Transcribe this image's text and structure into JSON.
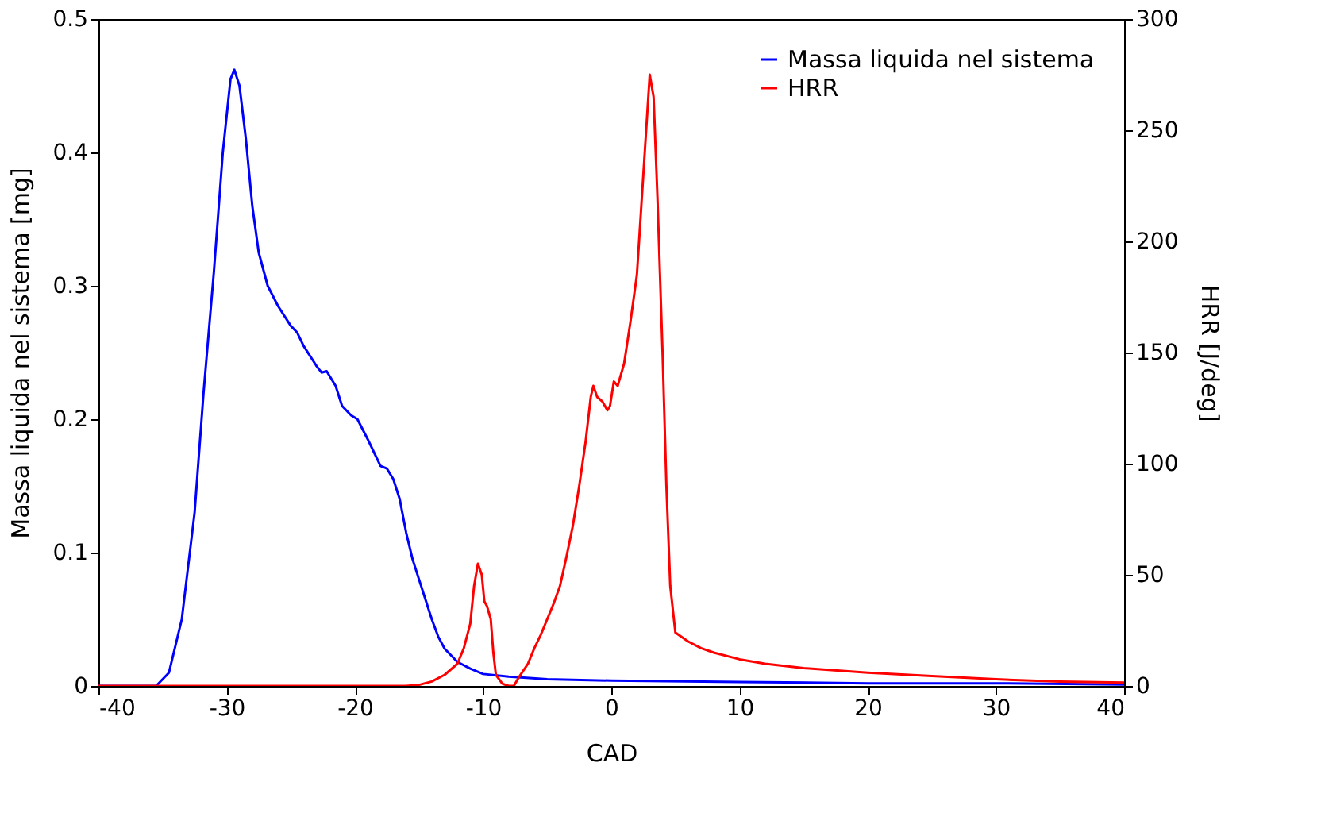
{
  "chart_data": {
    "type": "line",
    "xlabel": "CAD",
    "ylabel": "Massa liquida nel sistema [mg]",
    "y2label": "HRR [J/deg]",
    "xlim": [
      -40,
      40
    ],
    "xticks": [
      -40,
      -30,
      -20,
      -10,
      0,
      10,
      20,
      30,
      40
    ],
    "ylim": [
      0,
      0.5
    ],
    "yticks": [
      0,
      0.1,
      0.2,
      0.3,
      0.4,
      0.5
    ],
    "y2lim": [
      0,
      300
    ],
    "y2ticks": [
      0,
      50,
      100,
      150,
      200,
      250,
      300
    ],
    "grid": false,
    "legend": "top right",
    "line_style": "solid",
    "marker": "none",
    "series": [
      {
        "name": "Massa liquida nel sistema",
        "color": "#0000ff",
        "x": [
          -40,
          -35.5,
          -34.5,
          -33.5,
          -32.5,
          -31.8,
          -31,
          -30.3,
          -29.7,
          -29.4,
          -29,
          -28.5,
          -28,
          -27.5,
          -26.8,
          -26,
          -25,
          -24.5,
          -24,
          -23,
          -22.6,
          -22.2,
          -21.5,
          -21,
          -20.3,
          -19.8,
          -19,
          -18.5,
          -18,
          -17.5,
          -17,
          -16.5,
          -16,
          -15.5,
          -15,
          -14.5,
          -14,
          -13.5,
          -13,
          -12,
          -11,
          -10,
          -8,
          -5,
          0,
          10,
          20,
          30,
          40
        ],
        "values": [
          0,
          0,
          0.01,
          0.05,
          0.13,
          0.22,
          0.31,
          0.4,
          0.455,
          0.462,
          0.45,
          0.41,
          0.36,
          0.325,
          0.3,
          0.285,
          0.27,
          0.265,
          0.255,
          0.24,
          0.235,
          0.236,
          0.225,
          0.21,
          0.203,
          0.2,
          0.185,
          0.175,
          0.165,
          0.163,
          0.155,
          0.14,
          0.115,
          0.095,
          0.08,
          0.065,
          0.05,
          0.037,
          0.028,
          0.018,
          0.013,
          0.009,
          0.007,
          0.005,
          0.004,
          0.003,
          0.002,
          0.002,
          0.001
        ]
      },
      {
        "name": "HRR",
        "color": "#ff0000",
        "axis": "y2",
        "x": [
          -40,
          -16,
          -15,
          -14,
          -13,
          -12,
          -11.5,
          -11,
          -10.7,
          -10.4,
          -10.1,
          -9.9,
          -9.7,
          -9.4,
          -9.2,
          -9,
          -8.5,
          -8,
          -7.6,
          -7.2,
          -6.5,
          -6,
          -5.5,
          -5,
          -4.5,
          -4,
          -3.5,
          -3,
          -2.5,
          -2,
          -1.6,
          -1.4,
          -1.1,
          -0.7,
          -0.3,
          -0.1,
          0.2,
          0.5,
          1,
          1.5,
          2,
          2.5,
          3,
          3.3,
          3.6,
          4,
          4.3,
          4.6,
          5,
          6,
          7,
          8,
          10,
          12,
          15,
          20,
          25,
          30,
          35,
          40
        ],
        "values": [
          0,
          0,
          0.5,
          2,
          5,
          10,
          17,
          28,
          45,
          55,
          50,
          38,
          36,
          30,
          15,
          5,
          1,
          0,
          0,
          4,
          10,
          17,
          23,
          30,
          37,
          45,
          58,
          72,
          90,
          110,
          130,
          135,
          130,
          128,
          124,
          126,
          137,
          135,
          145,
          164,
          185,
          230,
          275,
          265,
          220,
          150,
          90,
          45,
          24,
          20,
          17,
          15,
          12,
          10,
          8,
          6,
          4.5,
          3,
          2,
          1.5
        ]
      }
    ]
  }
}
